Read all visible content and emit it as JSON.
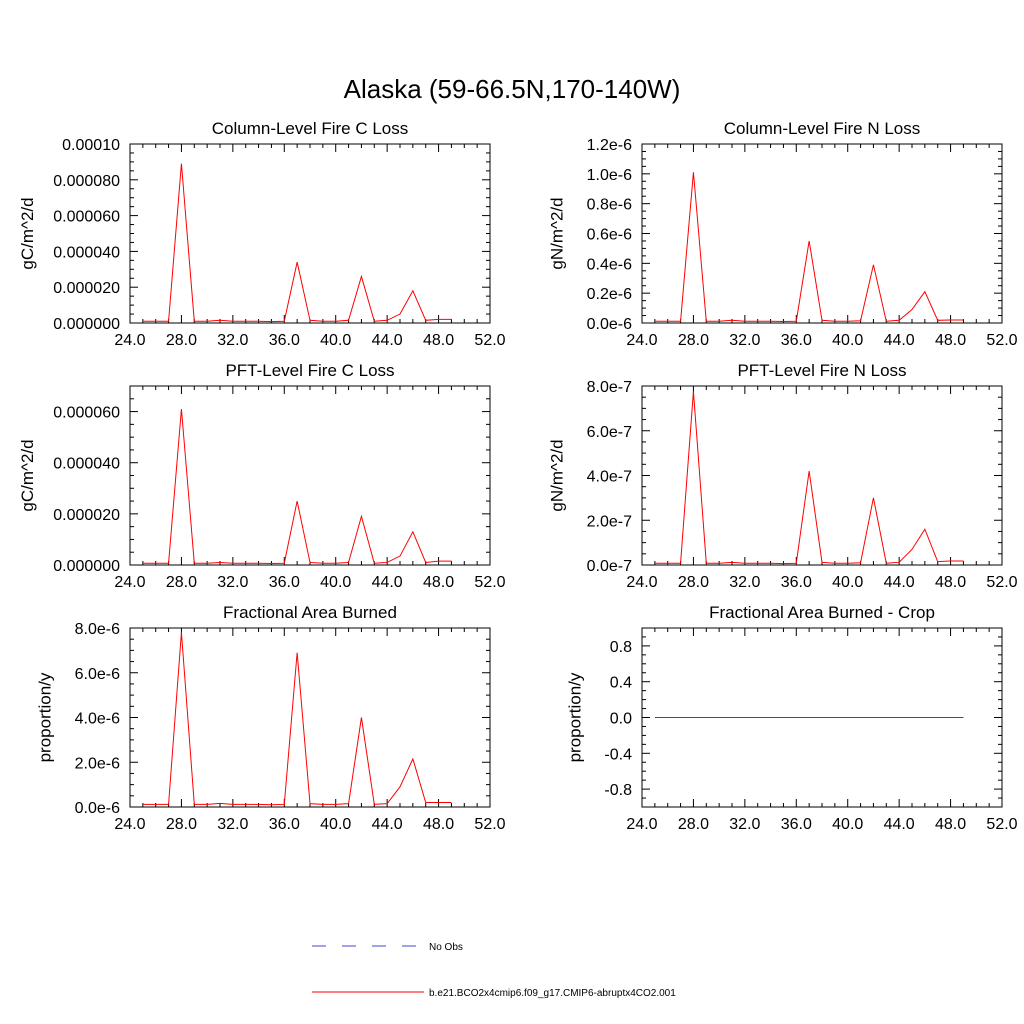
{
  "title": "Alaska (59-66.5N,170-140W)",
  "legend": {
    "items": [
      {
        "label": "No Obs",
        "color": "#4444cc",
        "style": "dashed"
      },
      {
        "label": "b.e21.BCO2x4cmip6.f09_g17.CMIP6-abruptx4CO2.001",
        "color": "#ff0000",
        "style": "solid"
      }
    ]
  },
  "chart_data": [
    {
      "type": "line",
      "title": "Column-Level Fire C Loss",
      "xlabel": "",
      "ylabel": "gC/m^2/d",
      "xlim": [
        24,
        52
      ],
      "xticks": [
        "24.0",
        "28.0",
        "32.0",
        "36.0",
        "40.0",
        "44.0",
        "48.0",
        "52.0"
      ],
      "ylim": [
        0,
        0.0001
      ],
      "yticks": [
        "0.000000",
        "0.000020",
        "0.000040",
        "0.000060",
        "0.000080",
        "0.00010"
      ],
      "series": [
        {
          "color": "#ff0000",
          "x": [
            25,
            26,
            27,
            28,
            29,
            30,
            31,
            32,
            33,
            34,
            35,
            36,
            37,
            38,
            39,
            40,
            41,
            42,
            43,
            44,
            45,
            46,
            47,
            48,
            49
          ],
          "y": [
            1e-06,
            1e-06,
            1e-06,
            8.9e-05,
            1e-06,
            1e-06,
            1.5e-06,
            1e-06,
            1e-06,
            1e-06,
            8e-07,
            1e-06,
            3.4e-05,
            1.5e-06,
            1e-06,
            1e-06,
            1.5e-06,
            2.6e-05,
            1e-06,
            1.5e-06,
            5e-06,
            1.8e-05,
            1.5e-06,
            2e-06,
            2e-06
          ]
        }
      ]
    },
    {
      "type": "line",
      "title": "Column-Level Fire N Loss",
      "xlabel": "",
      "ylabel": "gN/m^2/d",
      "xlim": [
        24,
        52
      ],
      "xticks": [
        "24.0",
        "28.0",
        "32.0",
        "36.0",
        "40.0",
        "44.0",
        "48.0",
        "52.0"
      ],
      "ylim": [
        0,
        1.2e-06
      ],
      "yticks": [
        "0.0e-6",
        "0.2e-6",
        "0.4e-6",
        "0.6e-6",
        "0.8e-6",
        "1.0e-6",
        "1.2e-6"
      ],
      "series": [
        {
          "color": "#ff0000",
          "x": [
            25,
            26,
            27,
            28,
            29,
            30,
            31,
            32,
            33,
            34,
            35,
            36,
            37,
            38,
            39,
            40,
            41,
            42,
            43,
            44,
            45,
            46,
            47,
            48,
            49
          ],
          "y": [
            1.2e-08,
            1.2e-08,
            1.2e-08,
            1.01e-06,
            1.2e-08,
            1.2e-08,
            1.8e-08,
            1.2e-08,
            1.2e-08,
            1.2e-08,
            1e-08,
            1.2e-08,
            5.5e-07,
            1.8e-08,
            1.2e-08,
            1.2e-08,
            1.5e-08,
            3.9e-07,
            1.2e-08,
            1.8e-08,
            9e-08,
            2.1e-07,
            1.8e-08,
            2e-08,
            2e-08
          ]
        }
      ]
    },
    {
      "type": "line",
      "title": "PFT-Level Fire C Loss",
      "xlabel": "",
      "ylabel": "gC/m^2/d",
      "xlim": [
        24,
        52
      ],
      "xticks": [
        "24.0",
        "28.0",
        "32.0",
        "36.0",
        "40.0",
        "44.0",
        "48.0",
        "52.0"
      ],
      "ylim": [
        0,
        7e-05
      ],
      "yticks": [
        "0.000000",
        "0.000020",
        "0.000040",
        "0.000060"
      ],
      "series": [
        {
          "color": "#ff0000",
          "x": [
            25,
            26,
            27,
            28,
            29,
            30,
            31,
            32,
            33,
            34,
            35,
            36,
            37,
            38,
            39,
            40,
            41,
            42,
            43,
            44,
            45,
            46,
            47,
            48,
            49
          ],
          "y": [
            7e-07,
            7e-07,
            7e-07,
            6.1e-05,
            7e-07,
            7e-07,
            1e-06,
            7e-07,
            7e-07,
            7e-07,
            6e-07,
            7e-07,
            2.5e-05,
            1e-06,
            7e-07,
            7e-07,
            1e-06,
            1.9e-05,
            7e-07,
            1e-06,
            3.5e-06,
            1.3e-05,
            1e-06,
            1.5e-06,
            1.5e-06
          ]
        }
      ]
    },
    {
      "type": "line",
      "title": "PFT-Level Fire N Loss",
      "xlabel": "",
      "ylabel": "gN/m^2/d",
      "xlim": [
        24,
        52
      ],
      "xticks": [
        "24.0",
        "28.0",
        "32.0",
        "36.0",
        "40.0",
        "44.0",
        "48.0",
        "52.0"
      ],
      "ylim": [
        0,
        8e-07
      ],
      "yticks": [
        "0.0e-7",
        "2.0e-7",
        "4.0e-7",
        "6.0e-7",
        "8.0e-7"
      ],
      "series": [
        {
          "color": "#ff0000",
          "x": [
            25,
            26,
            27,
            28,
            29,
            30,
            31,
            32,
            33,
            34,
            35,
            36,
            37,
            38,
            39,
            40,
            41,
            42,
            43,
            44,
            45,
            46,
            47,
            48,
            49
          ],
          "y": [
            8e-09,
            8e-09,
            8e-09,
            7.75e-07,
            8e-09,
            8e-09,
            1.2e-08,
            8e-09,
            8e-09,
            8e-09,
            6e-09,
            8e-09,
            4.2e-07,
            1.2e-08,
            8e-09,
            8e-09,
            1e-08,
            3e-07,
            8e-09,
            1.2e-08,
            7e-08,
            1.6e-07,
            1.5e-08,
            1.8e-08,
            1.8e-08
          ]
        }
      ]
    },
    {
      "type": "line",
      "title": "Fractional Area Burned",
      "xlabel": "",
      "ylabel": "proportion/y",
      "xlim": [
        24,
        52
      ],
      "xticks": [
        "24.0",
        "28.0",
        "32.0",
        "36.0",
        "40.0",
        "44.0",
        "48.0",
        "52.0"
      ],
      "ylim": [
        0,
        8e-06
      ],
      "yticks": [
        "0.0e-6",
        "2.0e-6",
        "4.0e-6",
        "6.0e-6",
        "8.0e-6"
      ],
      "series": [
        {
          "color": "#ff0000",
          "x": [
            25,
            26,
            27,
            28,
            29,
            30,
            31,
            32,
            33,
            34,
            35,
            36,
            37,
            38,
            39,
            40,
            41,
            42,
            43,
            44,
            45,
            46,
            47,
            48,
            49
          ],
          "y": [
            1.2e-07,
            1.2e-07,
            1.2e-07,
            7.8e-06,
            1.2e-07,
            1.2e-07,
            1.6e-07,
            1.2e-07,
            1.2e-07,
            1.2e-07,
            1e-07,
            1.2e-07,
            6.9e-06,
            1.5e-07,
            1.2e-07,
            1.2e-07,
            1.5e-07,
            4e-06,
            1.2e-07,
            1.5e-07,
            9e-07,
            2.15e-06,
            2e-07,
            2e-07,
            2e-07
          ]
        }
      ]
    },
    {
      "type": "line",
      "title": "Fractional Area Burned - Crop",
      "xlabel": "",
      "ylabel": "proportion/y",
      "xlim": [
        24,
        52
      ],
      "xticks": [
        "24.0",
        "28.0",
        "32.0",
        "36.0",
        "40.0",
        "44.0",
        "48.0",
        "52.0"
      ],
      "ylim": [
        -1,
        1
      ],
      "yticks": [
        "-0.8",
        "-0.4",
        "0.0",
        "0.4",
        "0.8"
      ],
      "series": [
        {
          "color": "#ff0000",
          "x": [
            25,
            49
          ],
          "y": [
            0,
            0
          ]
        }
      ]
    }
  ]
}
